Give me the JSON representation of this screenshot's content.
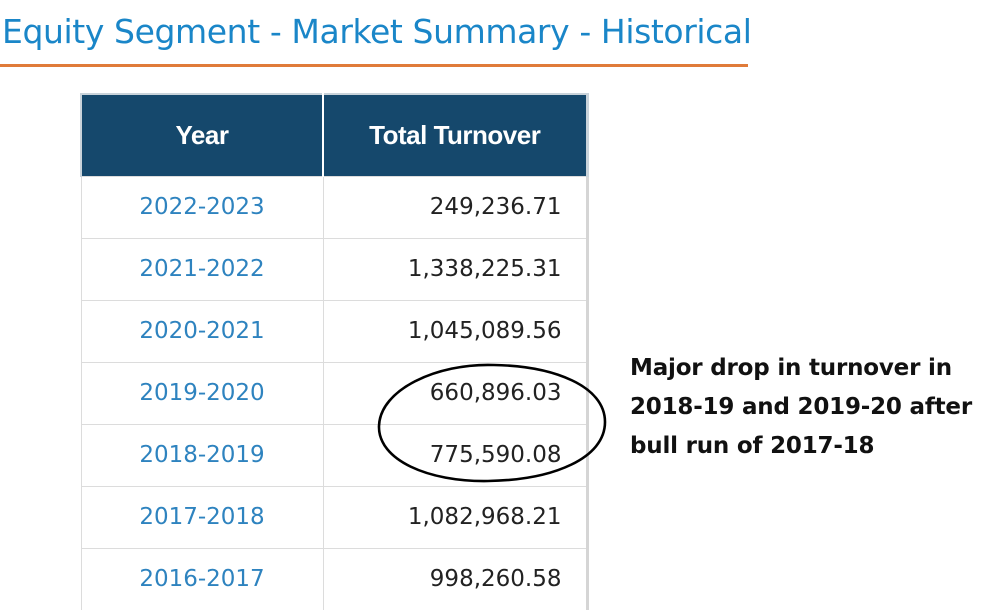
{
  "page": {
    "title": "Equity Segment - Market Summary - Historical"
  },
  "colors": {
    "title": "#1a86c8",
    "title_underline": "#e07b39",
    "table_header_bg": "#15486c",
    "table_header_text": "#ffffff",
    "year_link": "#2e83bf",
    "value_text": "#222222",
    "annotation": "#111111"
  },
  "table": {
    "headers": {
      "year": "Year",
      "turnover": "Total Turnover"
    },
    "rows": [
      {
        "year": "2022-2023",
        "turnover": "249,236.71"
      },
      {
        "year": "2021-2022",
        "turnover": "1,338,225.31"
      },
      {
        "year": "2020-2021",
        "turnover": "1,045,089.56"
      },
      {
        "year": "2019-2020",
        "turnover": "660,896.03"
      },
      {
        "year": "2018-2019",
        "turnover": "775,590.08"
      },
      {
        "year": "2017-2018",
        "turnover": "1,082,968.21"
      },
      {
        "year": "2016-2017",
        "turnover": "998,260.58"
      }
    ]
  },
  "annotation": {
    "lines": [
      "Major drop in turnover in",
      "2018-19 and 2019-20 after",
      "bull run of 2017-18"
    ]
  }
}
